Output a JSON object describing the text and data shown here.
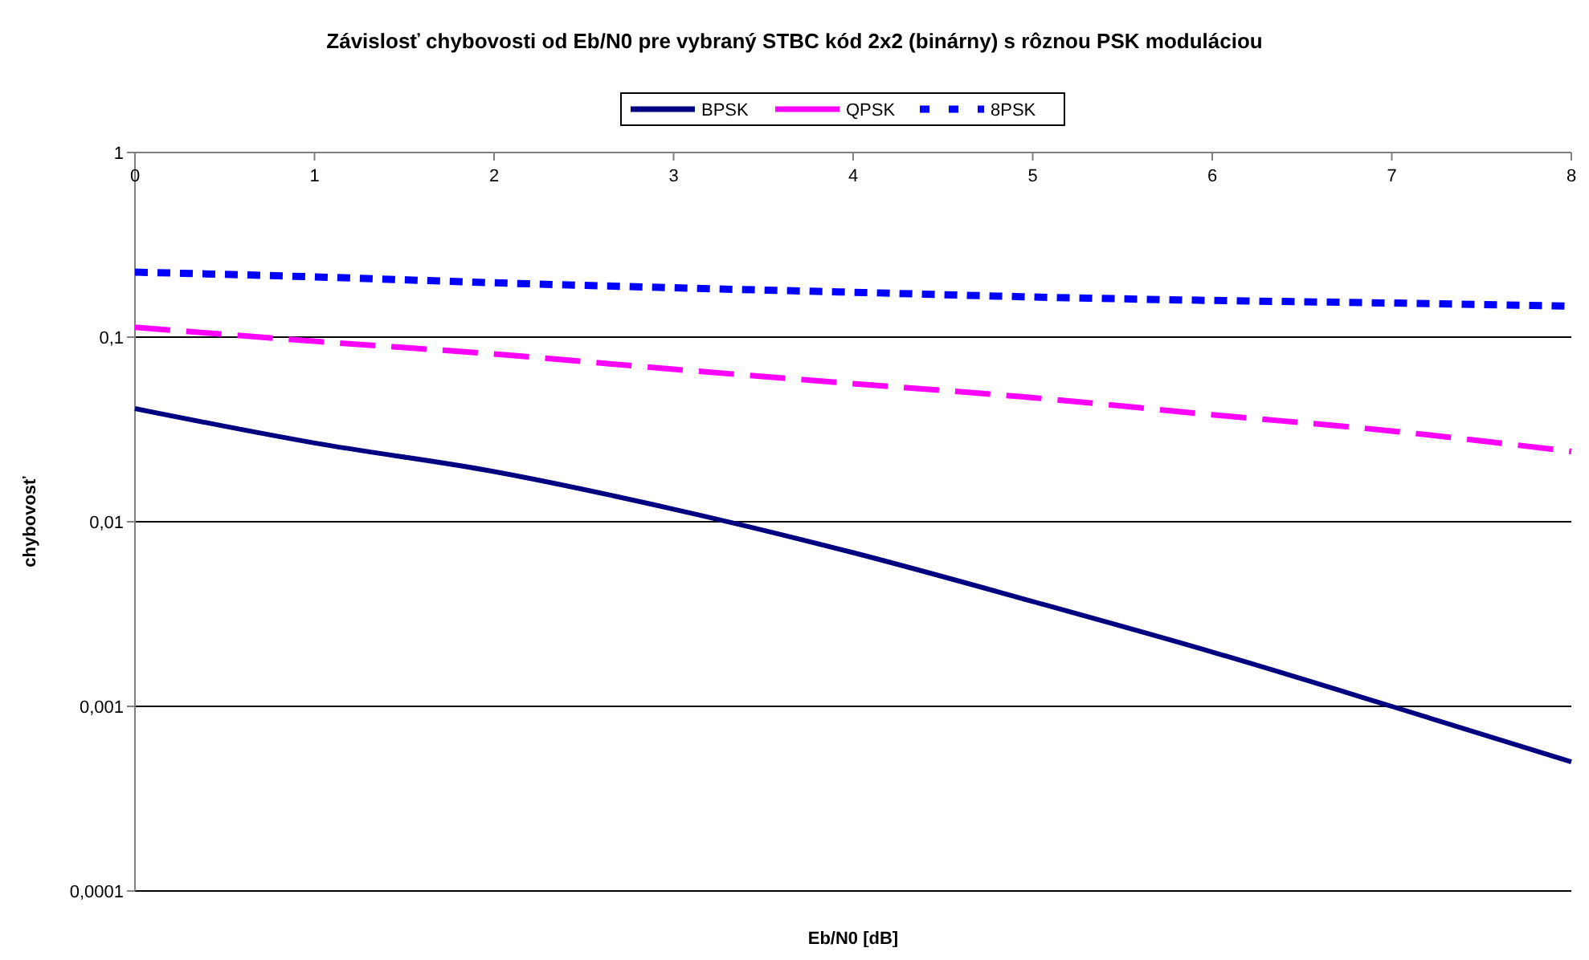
{
  "chart_data": {
    "type": "line",
    "title": "Závislosť chybovosti od Eb/N0 pre vybraný STBC kód 2x2 (binárny) s rôznou PSK moduláciou",
    "xlabel": "Eb/N0 [dB]",
    "ylabel": "chybovosť",
    "log": "y",
    "grid": "y",
    "legend": "top",
    "x": [
      0,
      1,
      2,
      3,
      4,
      5,
      6,
      7,
      8
    ],
    "xlim": [
      0,
      8
    ],
    "xticks": [
      0,
      1,
      2,
      3,
      4,
      5,
      6,
      7,
      8
    ],
    "ylim": [
      0.0001,
      1
    ],
    "yticks": [
      {
        "value": 0.0001,
        "label": "0,0001"
      },
      {
        "value": 0.001,
        "label": "0,001"
      },
      {
        "value": 0.01,
        "label": "0,01"
      },
      {
        "value": 0.1,
        "label": "0,1"
      },
      {
        "value": 1,
        "label": "1"
      }
    ],
    "series": [
      {
        "name": "BPSK",
        "color": "#000080",
        "line_style": "solid",
        "values": [
          0.041,
          0.0267,
          0.0187,
          0.0117,
          0.0068,
          0.0037,
          0.00197,
          0.001,
          0.0005
        ]
      },
      {
        "name": "QPSK",
        "color": "#ff00ff",
        "line_style": "dashed",
        "values": [
          0.113,
          0.095,
          0.081,
          0.067,
          0.056,
          0.047,
          0.038,
          0.031,
          0.024
        ]
      },
      {
        "name": "8PSK",
        "color": "#0000ff",
        "line_style": "dotted",
        "values": [
          0.225,
          0.212,
          0.197,
          0.185,
          0.175,
          0.165,
          0.158,
          0.153,
          0.147
        ]
      }
    ]
  }
}
